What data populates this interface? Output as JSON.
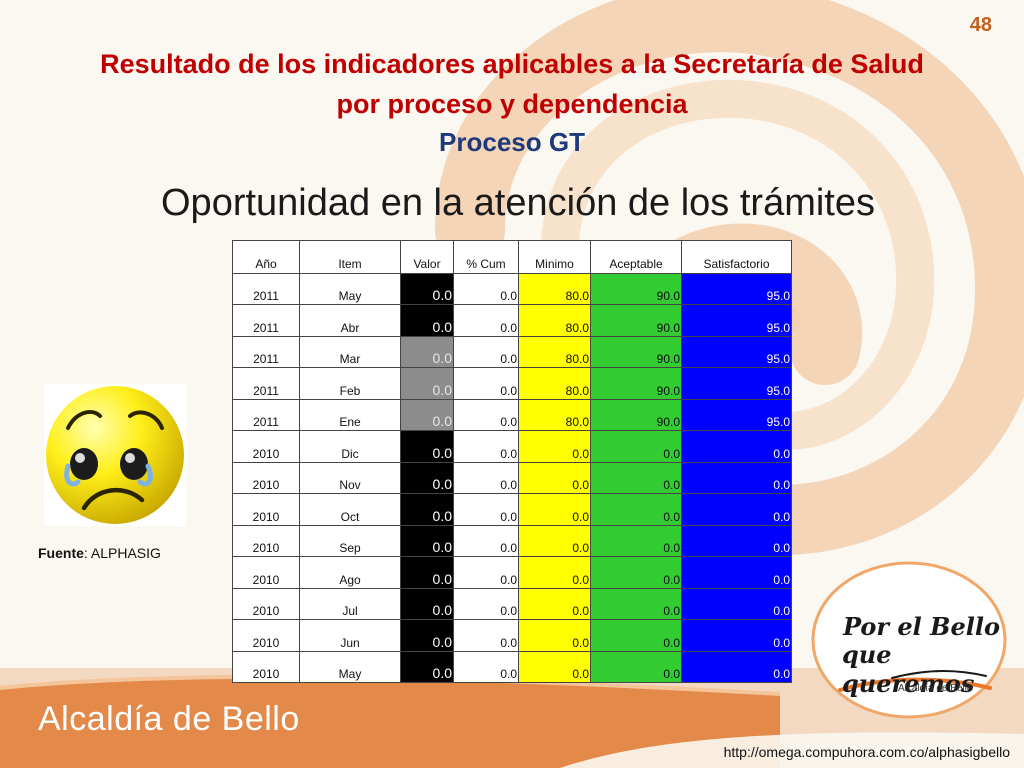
{
  "page_number": "48",
  "title_line1": "Resultado de los indicadores aplicables a la Secretaría de Salud",
  "title_line2": "por proceso y dependencia",
  "subtitle": "Proceso GT",
  "heading": "Oportunidad en la atención de los trámites",
  "table": {
    "headers": [
      "Año",
      "Item",
      "Valor",
      "% Cum",
      "Minimo",
      "Aceptable",
      "Satisfactorio"
    ],
    "rows": [
      {
        "anio": "2011",
        "item": "May",
        "valor": "0.0",
        "valor_gray": false,
        "cum": "0.0",
        "minimo": "80.0",
        "aceptable": "90.0",
        "satisfactorio": "95.0"
      },
      {
        "anio": "2011",
        "item": "Abr",
        "valor": "0.0",
        "valor_gray": false,
        "cum": "0.0",
        "minimo": "80.0",
        "aceptable": "90.0",
        "satisfactorio": "95.0"
      },
      {
        "anio": "2011",
        "item": "Mar",
        "valor": "0.0",
        "valor_gray": true,
        "cum": "0.0",
        "minimo": "80.0",
        "aceptable": "90.0",
        "satisfactorio": "95.0"
      },
      {
        "anio": "2011",
        "item": "Feb",
        "valor": "0.0",
        "valor_gray": true,
        "cum": "0.0",
        "minimo": "80.0",
        "aceptable": "90.0",
        "satisfactorio": "95.0"
      },
      {
        "anio": "2011",
        "item": "Ene",
        "valor": "0.0",
        "valor_gray": true,
        "cum": "0.0",
        "minimo": "80.0",
        "aceptable": "90.0",
        "satisfactorio": "95.0"
      },
      {
        "anio": "2010",
        "item": "Dic",
        "valor": "0.0",
        "valor_gray": false,
        "cum": "0.0",
        "minimo": "0.0",
        "aceptable": "0.0",
        "satisfactorio": "0.0"
      },
      {
        "anio": "2010",
        "item": "Nov",
        "valor": "0.0",
        "valor_gray": false,
        "cum": "0.0",
        "minimo": "0.0",
        "aceptable": "0.0",
        "satisfactorio": "0.0"
      },
      {
        "anio": "2010",
        "item": "Oct",
        "valor": "0.0",
        "valor_gray": false,
        "cum": "0.0",
        "minimo": "0.0",
        "aceptable": "0.0",
        "satisfactorio": "0.0"
      },
      {
        "anio": "2010",
        "item": "Sep",
        "valor": "0.0",
        "valor_gray": false,
        "cum": "0.0",
        "minimo": "0.0",
        "aceptable": "0.0",
        "satisfactorio": "0.0"
      },
      {
        "anio": "2010",
        "item": "Ago",
        "valor": "0.0",
        "valor_gray": false,
        "cum": "0.0",
        "minimo": "0.0",
        "aceptable": "0.0",
        "satisfactorio": "0.0"
      },
      {
        "anio": "2010",
        "item": "Jul",
        "valor": "0.0",
        "valor_gray": false,
        "cum": "0.0",
        "minimo": "0.0",
        "aceptable": "0.0",
        "satisfactorio": "0.0"
      },
      {
        "anio": "2010",
        "item": "Jun",
        "valor": "0.0",
        "valor_gray": false,
        "cum": "0.0",
        "minimo": "0.0",
        "aceptable": "0.0",
        "satisfactorio": "0.0"
      },
      {
        "anio": "2010",
        "item": "May",
        "valor": "0.0",
        "valor_gray": false,
        "cum": "0.0",
        "minimo": "0.0",
        "aceptable": "0.0",
        "satisfactorio": "0.0"
      }
    ]
  },
  "fuente": {
    "label": "Fuente",
    "value": ": ALPHASIG"
  },
  "footer_logo": "Alcaldía de Bello",
  "badge": {
    "line1": "Por el Bello",
    "line2": "que queremos",
    "line3": "Alcaldía de Bello"
  },
  "url": "http://omega.compuhora.com.co/alphasigbello",
  "icons": {
    "smiley": "sad-face-icon"
  },
  "colors": {
    "title": "#c00000",
    "subtitle": "#1f3a7a",
    "minimo": "#ffff00",
    "aceptable": "#33cc33",
    "satisfactorio": "#0000ff",
    "valor": "#000000",
    "valor_gray": "#8c8c8c",
    "accent": "#e89a5a"
  }
}
